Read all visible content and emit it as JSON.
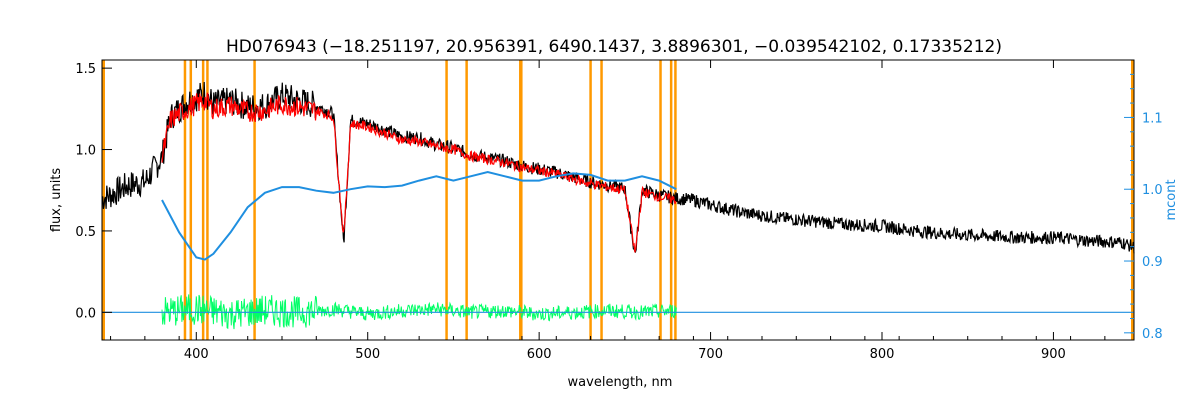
{
  "chart_data": {
    "type": "line",
    "title": "HD076943   (−18.251197, 20.956391, 6490.1437, 3.8896301, −0.039542102, 0.17335212)",
    "xlabel": "wavelength, nm",
    "ylabel": "flux, units",
    "y2label": "mcont",
    "xlim": [
      345,
      947
    ],
    "ylim": [
      -0.17,
      1.55
    ],
    "y2lim": [
      0.79,
      1.18
    ],
    "xticks": [
      400,
      500,
      600,
      700,
      800,
      900
    ],
    "yticks": [
      0.0,
      0.5,
      1.0,
      1.5
    ],
    "yticklabels": [
      "0.0",
      "0.5",
      "1.0",
      "1.5"
    ],
    "y2ticks": [
      0.8,
      0.9,
      1.0,
      1.1
    ],
    "y2ticklabels": [
      "0.8",
      "0.9",
      "1.0",
      "1.1"
    ],
    "colors": {
      "observed": "#000000",
      "model": "#ff0000",
      "residual": "#00ff66",
      "mcont": "#1f8fe0",
      "masks": "#ff9900",
      "highlight": "#ffff00"
    },
    "mask_lines": [
      393.4,
      396.8,
      404.0,
      406.5,
      434.0,
      546.0,
      557.7,
      589.0,
      589.6,
      630.0,
      636.4,
      670.8,
      677.0,
      679.5
    ],
    "series": [
      {
        "name": "observed",
        "x": [
          345,
          350,
          360,
          370,
          380,
          385,
          390,
          395,
          400,
          405,
          410,
          420,
          430,
          440,
          450,
          460,
          470,
          480,
          486,
          490,
          500,
          510,
          520,
          530,
          540,
          550,
          560,
          570,
          580,
          590,
          600,
          610,
          620,
          630,
          640,
          650,
          656,
          660,
          670,
          680,
          690,
          700,
          720,
          740,
          760,
          780,
          800,
          820,
          840,
          860,
          880,
          900,
          920,
          940,
          947
        ],
        "y": [
          0.7,
          0.72,
          0.78,
          0.8,
          0.95,
          1.2,
          1.25,
          1.3,
          1.32,
          1.35,
          1.28,
          1.3,
          1.26,
          1.27,
          1.33,
          1.3,
          1.27,
          1.22,
          0.42,
          1.18,
          1.16,
          1.12,
          1.08,
          1.07,
          1.03,
          1.01,
          0.97,
          0.95,
          0.93,
          0.9,
          0.88,
          0.86,
          0.83,
          0.8,
          0.78,
          0.76,
          0.35,
          0.75,
          0.72,
          0.7,
          0.69,
          0.66,
          0.61,
          0.58,
          0.56,
          0.54,
          0.53,
          0.5,
          0.48,
          0.47,
          0.46,
          0.46,
          0.44,
          0.43,
          0.4
        ]
      },
      {
        "name": "model",
        "x": [
          380,
          385,
          390,
          395,
          400,
          405,
          410,
          420,
          430,
          440,
          450,
          460,
          470,
          480,
          486,
          490,
          500,
          510,
          520,
          530,
          540,
          550,
          560,
          570,
          580,
          590,
          600,
          610,
          620,
          630,
          640,
          650,
          656,
          660,
          670,
          680
        ],
        "y": [
          0.95,
          1.18,
          1.22,
          1.25,
          1.28,
          1.3,
          1.25,
          1.27,
          1.23,
          1.24,
          1.28,
          1.26,
          1.24,
          1.2,
          0.45,
          1.16,
          1.14,
          1.1,
          1.06,
          1.05,
          1.02,
          1.0,
          0.96,
          0.94,
          0.92,
          0.89,
          0.87,
          0.85,
          0.82,
          0.79,
          0.77,
          0.75,
          0.36,
          0.74,
          0.71,
          0.69
        ]
      },
      {
        "name": "mcont",
        "axis": "right",
        "x": [
          380,
          390,
          400,
          405,
          410,
          420,
          430,
          440,
          450,
          460,
          470,
          480,
          490,
          500,
          510,
          520,
          530,
          540,
          550,
          560,
          570,
          580,
          590,
          600,
          610,
          620,
          630,
          640,
          650,
          660,
          670,
          680
        ],
        "y": [
          0.985,
          0.94,
          0.905,
          0.902,
          0.91,
          0.94,
          0.975,
          0.995,
          1.003,
          1.003,
          0.998,
          0.995,
          1.0,
          1.004,
          1.003,
          1.005,
          1.012,
          1.018,
          1.012,
          1.018,
          1.024,
          1.018,
          1.012,
          1.012,
          1.018,
          1.022,
          1.02,
          1.012,
          1.012,
          1.018,
          1.012,
          1.0
        ]
      },
      {
        "name": "residual",
        "x": [
          380,
          400,
          420,
          440,
          460,
          480,
          500,
          520,
          540,
          560,
          580,
          600,
          620,
          640,
          660,
          680
        ],
        "y": [
          0.0,
          0.02,
          -0.01,
          0.01,
          0.0,
          0.02,
          -0.01,
          0.01,
          0.02,
          0.0,
          0.01,
          -0.01,
          0.0,
          0.01,
          0.0,
          0.01
        ]
      },
      {
        "name": "zero-level",
        "x": [
          345,
          947
        ],
        "y": [
          0.0,
          0.0
        ]
      }
    ]
  }
}
